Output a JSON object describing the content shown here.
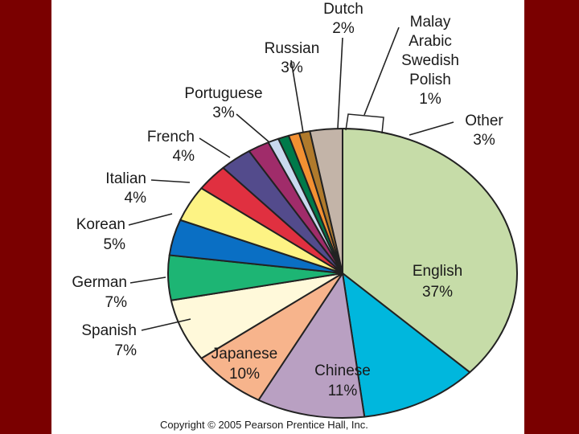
{
  "chart_data": {
    "type": "pie",
    "title": "",
    "slices": [
      {
        "name": "English",
        "label_lines": [
          "English",
          "37%"
        ],
        "value": 37,
        "color": "#c6dca8"
      },
      {
        "name": "Chinese",
        "label_lines": [
          "Chinese",
          "11%"
        ],
        "value": 11,
        "color": "#00b7dd"
      },
      {
        "name": "Japanese",
        "label_lines": [
          "Japanese",
          "10%"
        ],
        "value": 10,
        "color": "#b9a0c2"
      },
      {
        "name": "Spanish",
        "label_lines": [
          "Spanish",
          "7%"
        ],
        "value": 7,
        "color": "#f7b48c"
      },
      {
        "name": "German",
        "label_lines": [
          "German",
          "7%"
        ],
        "value": 7,
        "color": "#fff9da"
      },
      {
        "name": "Korean",
        "label_lines": [
          "Korean",
          "5%"
        ],
        "value": 5,
        "color": "#1db574"
      },
      {
        "name": "Italian",
        "label_lines": [
          "Italian",
          "4%"
        ],
        "value": 4,
        "color": "#0a6fc4"
      },
      {
        "name": "French",
        "label_lines": [
          "French",
          "4%"
        ],
        "value": 4,
        "color": "#fdf384"
      },
      {
        "name": "Portuguese",
        "label_lines": [
          "Portuguese",
          "3%"
        ],
        "value": 3,
        "color": "#e03040"
      },
      {
        "name": "Russian",
        "label_lines": [
          "Russian",
          "3%"
        ],
        "value": 3,
        "color": "#534b8c"
      },
      {
        "name": "Dutch",
        "label_lines": [
          "Dutch",
          "2%"
        ],
        "value": 2,
        "color": "#a02c6a"
      },
      {
        "name": "Malay",
        "value": 1,
        "color": "#c9d9ee"
      },
      {
        "name": "Arabic",
        "value": 1,
        "color": "#007a4a"
      },
      {
        "name": "Swedish",
        "value": 1,
        "color": "#f39032"
      },
      {
        "name": "Polish",
        "value": 1,
        "color": "#b07a2c"
      },
      {
        "name": "Other",
        "label_lines": [
          "Other",
          "3%"
        ],
        "value": 3,
        "color": "#c3b4a8"
      }
    ],
    "group_label": {
      "lines": [
        "Malay",
        "Arabic",
        "Swedish",
        "Polish",
        "1%"
      ]
    }
  },
  "copyright": "Copyright © 2005 Pearson Prentice Hall, Inc.",
  "colors": {
    "background": "#7a0000",
    "slide": "#ffffff",
    "outline": "#222222"
  }
}
